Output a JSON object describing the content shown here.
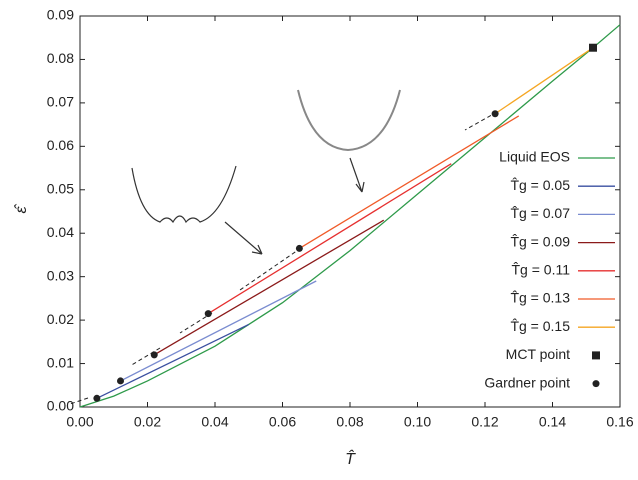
{
  "chart_data": {
    "type": "line",
    "x_label": "T̂",
    "y_label": "ε̂",
    "xlim": [
      0,
      0.16
    ],
    "xticks": [
      {
        "value": 0,
        "label": "0.00"
      },
      {
        "value": 0.02,
        "label": "0.02"
      },
      {
        "value": 0.04,
        "label": "0.04"
      },
      {
        "value": 0.06,
        "label": "0.06"
      },
      {
        "value": 0.08,
        "label": "0.08"
      },
      {
        "value": 0.1,
        "label": "0.10"
      },
      {
        "value": 0.12,
        "label": "0.12"
      },
      {
        "value": 0.14,
        "label": "0.14"
      },
      {
        "value": 0.16,
        "label": "0.16"
      }
    ],
    "ylim": [
      0,
      0.09
    ],
    "yticks": [
      {
        "value": 0,
        "label": "0.00"
      },
      {
        "value": 0.01,
        "label": "0.01"
      },
      {
        "value": 0.02,
        "label": "0.02"
      },
      {
        "value": 0.03,
        "label": "0.03"
      },
      {
        "value": 0.04,
        "label": "0.04"
      },
      {
        "value": 0.05,
        "label": "0.05"
      },
      {
        "value": 0.06,
        "label": "0.06"
      },
      {
        "value": 0.07,
        "label": "0.07"
      },
      {
        "value": 0.08,
        "label": "0.08"
      },
      {
        "value": 0.09,
        "label": "0.09"
      }
    ],
    "legend": "right",
    "series": [
      {
        "name": "Liquid EOS",
        "color": "#2e9a4a",
        "marker": "none",
        "x": [
          0,
          0.01,
          0.02,
          0.04,
          0.06,
          0.08,
          0.1,
          0.12,
          0.14,
          0.152,
          0.16
        ],
        "values": [
          0,
          0.0025,
          0.006,
          0.014,
          0.024,
          0.036,
          0.049,
          0.062,
          0.075,
          0.0827,
          0.088
        ]
      },
      {
        "name": "T̂g = 0.05",
        "color": "#3a4fa0",
        "marker": "none",
        "x": [
          0.005,
          0.05
        ],
        "values": [
          0.002,
          0.019
        ]
      },
      {
        "name": "T̂g = 0.07",
        "color": "#7a8cd0",
        "marker": "none",
        "x": [
          0.012,
          0.07
        ],
        "values": [
          0.006,
          0.029
        ]
      },
      {
        "name": "T̂g = 0.09",
        "color": "#8b1a1a",
        "marker": "none",
        "x": [
          0.022,
          0.09
        ],
        "values": [
          0.012,
          0.043
        ]
      },
      {
        "name": "T̂g = 0.11",
        "color": "#e63030",
        "marker": "none",
        "x": [
          0.038,
          0.11
        ],
        "values": [
          0.0215,
          0.056
        ]
      },
      {
        "name": "T̂g = 0.13",
        "color": "#f05a28",
        "marker": "none",
        "x": [
          0.065,
          0.13
        ],
        "values": [
          0.0365,
          0.067
        ]
      },
      {
        "name": "T̂g = 0.15",
        "color": "#f5a623",
        "marker": "none",
        "x": [
          0.123,
          0.152
        ],
        "values": [
          0.0675,
          0.0827
        ]
      },
      {
        "name": "MCT point",
        "color": "#222222",
        "marker": "square",
        "x": [
          0.152
        ],
        "values": [
          0.0827
        ]
      },
      {
        "name": "Gardner point",
        "color": "#222222",
        "marker": "circle",
        "x": [
          0.005,
          0.012,
          0.022,
          0.038,
          0.065,
          0.123
        ],
        "values": [
          0.002,
          0.006,
          0.012,
          0.0215,
          0.0365,
          0.0675
        ]
      }
    ]
  }
}
